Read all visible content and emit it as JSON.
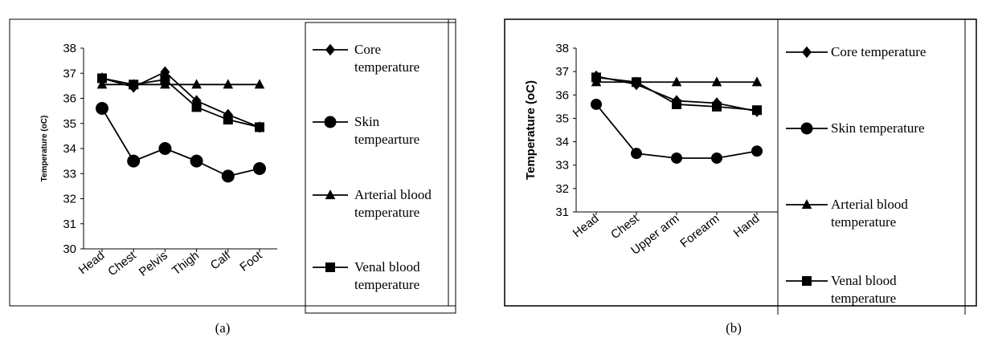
{
  "chart_data": [
    {
      "type": "line",
      "panel_label": "(a)",
      "categories": [
        "Head",
        "Chest",
        "Pelvis",
        "Thigh",
        "Calf",
        "Foot"
      ],
      "ylabel": "Temperature (oC)",
      "ylim": [
        30,
        38
      ],
      "yticks": [
        "30",
        "31",
        "32",
        "33",
        "34",
        "35",
        "36",
        "37",
        "38"
      ],
      "grid": false,
      "legend_position": "right",
      "series": [
        {
          "name": "Core temperature",
          "marker": "diamond",
          "values": [
            36.8,
            36.45,
            37.05,
            35.9,
            35.35,
            34.85
          ]
        },
        {
          "name": "Skin tempearture",
          "marker": "circle",
          "values": [
            35.6,
            33.5,
            34.0,
            33.5,
            32.9,
            33.2
          ]
        },
        {
          "name": "Arterial blood temperature",
          "marker": "triangle",
          "values": [
            36.55,
            36.55,
            36.55,
            36.55,
            36.55,
            36.55
          ]
        },
        {
          "name": "Venal blood temperature",
          "marker": "square",
          "values": [
            36.8,
            36.55,
            36.75,
            35.65,
            35.15,
            34.85
          ]
        }
      ]
    },
    {
      "type": "line",
      "panel_label": "(b)",
      "categories": [
        "Head",
        "Chest",
        "Upper arm",
        "Forearm",
        "Hand"
      ],
      "ylabel": "Temperature (oC)",
      "ylim": [
        31,
        38
      ],
      "yticks": [
        "31",
        "32",
        "33",
        "34",
        "35",
        "36",
        "37",
        "38"
      ],
      "grid": false,
      "legend_position": "right",
      "series": [
        {
          "name": "Core temperature",
          "marker": "diamond",
          "values": [
            36.8,
            36.45,
            35.75,
            35.65,
            35.3
          ]
        },
        {
          "name": "Skin temperature",
          "marker": "circle",
          "values": [
            35.6,
            33.5,
            33.3,
            33.3,
            33.6
          ]
        },
        {
          "name": "Arterial blood temperature",
          "marker": "triangle",
          "values": [
            36.55,
            36.55,
            36.55,
            36.55,
            36.55
          ]
        },
        {
          "name": "Venal blood temperature",
          "marker": "square",
          "values": [
            36.75,
            36.55,
            35.6,
            35.5,
            35.35
          ]
        }
      ]
    }
  ]
}
